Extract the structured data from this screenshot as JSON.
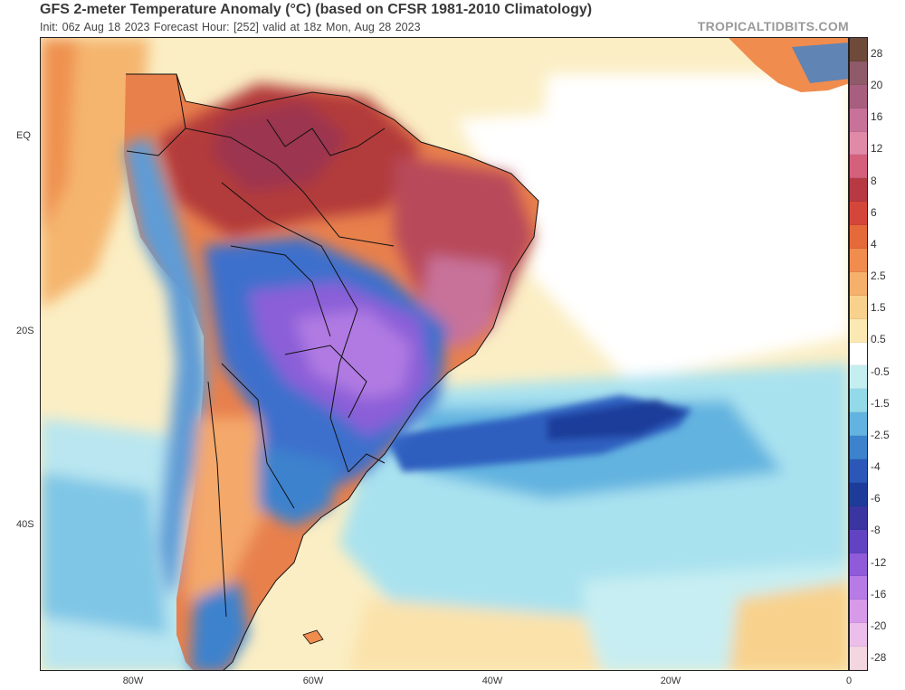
{
  "header": {
    "title": "GFS 2-meter Temperature Anomaly (°C) (based on CFSR 1981-2010 Climatology)",
    "subtitle": "Init: 06z Aug 18 2023   Forecast Hour: [252]   valid at 18z Mon, Aug 28 2023",
    "brand": "TROPICALTIDBITS.COM"
  },
  "axes": {
    "lat_labels": [
      "EQ",
      "20S",
      "40S"
    ],
    "lon_labels": [
      "80W",
      "60W",
      "40W",
      "20W",
      "0"
    ]
  },
  "colorbar": {
    "labels": [
      "28",
      "20",
      "16",
      "12",
      "8",
      "6",
      "4",
      "2.5",
      "1.5",
      "0.5",
      "-0.5",
      "-1.5",
      "-2.5",
      "-4",
      "-6",
      "-8",
      "-12",
      "-16",
      "-20",
      "-28"
    ],
    "colors": [
      "#6e4a3a",
      "#8f5a6a",
      "#a85f7f",
      "#c8729a",
      "#e08aa8",
      "#d4607c",
      "#b73a43",
      "#d5463a",
      "#e56a3a",
      "#f08c4e",
      "#f5b06b",
      "#f8d28d",
      "#fbe9b4",
      "#ffffff",
      "#c4eef0",
      "#93d9e8",
      "#62b3e0",
      "#3c82cd",
      "#2a57b8",
      "#1d3c9a",
      "#3a35a0",
      "#6244c3",
      "#8f5bd9",
      "#b77be6",
      "#d69ae8",
      "#ebbfe9",
      "#f3d6e0"
    ]
  }
}
